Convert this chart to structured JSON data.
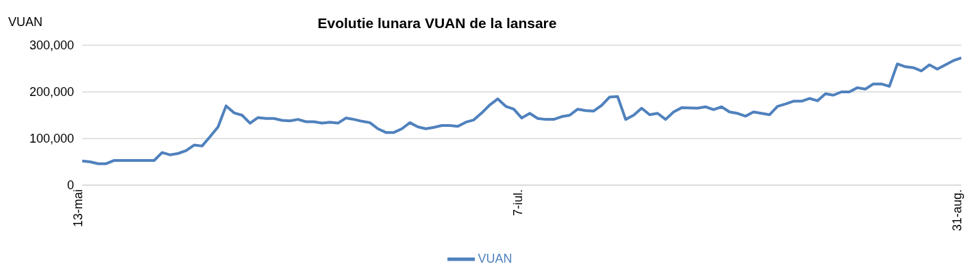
{
  "chart_data": {
    "type": "line",
    "title": "Evolutie lunara VUAN de la lansare",
    "ylabel": "VUAN",
    "x": [
      "--05-13",
      "--05-14",
      "--05-15",
      "--05-16",
      "--05-17",
      "--05-22",
      "--05-23",
      "--05-24",
      "--05-25",
      "--05-26",
      "--05-27",
      "--05-28",
      "--05-29",
      "--05-30",
      "--05-31",
      "--06-01",
      "--06-02",
      "--06-03",
      "--06-04",
      "--06-05",
      "--06-06",
      "--06-07",
      "--06-08",
      "--06-09",
      "--06-10",
      "--06-11",
      "--06-12",
      "--06-13",
      "--06-14",
      "--06-15",
      "--06-16",
      "--06-17",
      "--06-18",
      "--06-19",
      "--06-20",
      "--06-21",
      "--06-22",
      "--06-23",
      "--06-24",
      "--06-25",
      "--06-26",
      "--06-27",
      "--06-28",
      "--06-29",
      "--06-30",
      "--07-01",
      "--07-02",
      "--07-03",
      "--07-04",
      "--07-05",
      "--07-06",
      "--07-07",
      "--07-08",
      "--07-09",
      "--07-10",
      "--07-11",
      "--07-12",
      "--07-13",
      "--07-14",
      "--07-15",
      "--07-16",
      "--07-17",
      "--07-18",
      "--07-19",
      "--07-20",
      "--07-21",
      "--07-22",
      "--07-23",
      "--07-24",
      "--07-25",
      "--07-26",
      "--07-27",
      "--07-29",
      "--07-30",
      "--07-31",
      "--08-01",
      "--08-02",
      "--08-03",
      "--08-04",
      "--08-05",
      "--08-07",
      "--08-08",
      "--08-09",
      "--08-10",
      "--08-11",
      "--08-12",
      "--08-13",
      "--08-14",
      "--08-15",
      "--08-16",
      "--08-17",
      "--08-18",
      "--08-19",
      "--08-20",
      "--08-21",
      "--08-22",
      "--08-23",
      "--08-24",
      "--08-25",
      "--08-26",
      "--08-27",
      "--08-28",
      "--08-30",
      "--08-31"
    ],
    "series": [
      {
        "name": "VUAN",
        "color": "#4f81bd",
        "values": [
          52000,
          50000,
          46000,
          46000,
          53000,
          53000,
          70000,
          65000,
          68000,
          74000,
          86000,
          84000,
          104000,
          125000,
          170000,
          155000,
          150000,
          133000,
          145000,
          143000,
          143000,
          139000,
          138000,
          141000,
          136000,
          136000,
          133000,
          135000,
          133000,
          144000,
          141000,
          137000,
          134000,
          121000,
          113000,
          113000,
          121000,
          134000,
          125000,
          121000,
          124000,
          128000,
          128000,
          126000,
          135000,
          140000,
          155000,
          172000,
          185000,
          169000,
          163000,
          144000,
          154000,
          143000,
          141000,
          141000,
          147000,
          150000,
          163000,
          160000,
          159000,
          171000,
          189000,
          190000,
          141000,
          150000,
          165000,
          151000,
          154000,
          141000,
          157000,
          166000,
          165000,
          168000,
          162000,
          168000,
          157000,
          154000,
          148000,
          157000,
          151000,
          169000,
          174000,
          180000,
          180000,
          186000,
          181000,
          196000,
          193000,
          200000,
          200000,
          209000,
          206000,
          217000,
          217000,
          212000,
          260000,
          254000,
          252000,
          245000,
          258000,
          249000,
          267000,
          273000
        ]
      }
    ],
    "xlim": [
      "--05-13",
      "--08-31"
    ],
    "xticks": [
      {
        "value": "--05-13",
        "label": "13-mai"
      },
      {
        "value": "--07-07",
        "label": "7-iul."
      },
      {
        "value": "--08-31",
        "label": "31-aug."
      }
    ],
    "ylim": [
      0,
      300000
    ],
    "yticks": [
      {
        "value": 0,
        "label": "0"
      },
      {
        "value": 100000,
        "label": "100,000"
      },
      {
        "value": 200000,
        "label": "200,000"
      },
      {
        "value": 300000,
        "label": "300,000"
      }
    ],
    "grid": "y",
    "legend": "bottom",
    "marker": "none",
    "line_style": "solid"
  }
}
